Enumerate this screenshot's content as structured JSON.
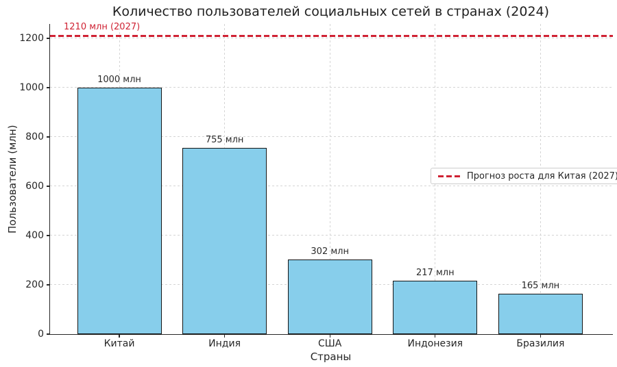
{
  "chart_data": {
    "type": "bar",
    "title": "Количество пользователей социальных сетей в странах (2024)",
    "xlabel": "Страны",
    "ylabel": "Пользователи (млн)",
    "categories": [
      "Китай",
      "Индия",
      "США",
      "Индонезия",
      "Бразилия"
    ],
    "values": [
      1000,
      755,
      302,
      217,
      165
    ],
    "bar_labels": [
      "1000 млн",
      "755 млн",
      "302 млн",
      "217 млн",
      "165 млн"
    ],
    "unit": "млн",
    "yticks": [
      0,
      200,
      400,
      600,
      800,
      1000,
      1200
    ],
    "ylim": [
      0,
      1258
    ],
    "grid": true,
    "bar_color": "#87ceeb",
    "bar_edge_color": "#141414",
    "reference_line": {
      "value": 1210,
      "label": "1210 млн (2027)",
      "color": "#cf2233",
      "style": "dashed"
    },
    "legend": {
      "position": "center right",
      "entries": [
        {
          "label": "Прогноз роста для Китая (2027)",
          "style": "dashed",
          "color": "#cf2233"
        }
      ]
    }
  }
}
